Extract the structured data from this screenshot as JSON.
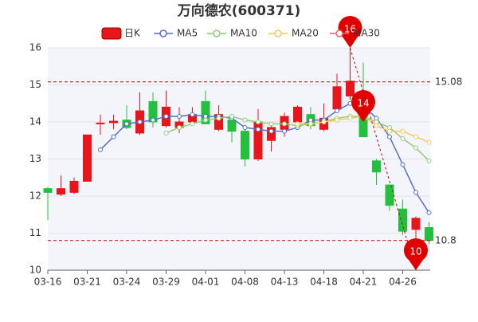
{
  "chart_data": {
    "type": "candlestick",
    "title": "万向德农(600371)",
    "categories": [
      "03-16",
      null,
      null,
      "03-21",
      null,
      null,
      "03-24",
      null,
      null,
      "03-29",
      null,
      null,
      "04-01",
      null,
      null,
      "04-08",
      null,
      null,
      "04-13",
      null,
      null,
      "04-18",
      null,
      null,
      "04-21",
      null,
      null,
      "04-26",
      null,
      null
    ],
    "candle_name": "日K",
    "up_color": "#e8151b",
    "down_color": "#22c03c",
    "open": [
      12.2,
      12.05,
      12.1,
      12.4,
      13.95,
      13.98,
      14.05,
      13.7,
      14.55,
      13.9,
      13.85,
      14.0,
      14.55,
      13.8,
      14.05,
      13.75,
      13.0,
      13.5,
      13.8,
      14.0,
      14.2,
      13.8,
      14.35,
      14.7,
      14.65,
      12.95,
      12.3,
      11.65,
      11.1,
      11.15
    ],
    "close": [
      12.1,
      12.2,
      12.4,
      13.65,
      13.97,
      14.02,
      13.85,
      14.3,
      14.0,
      14.4,
      14.0,
      14.2,
      13.95,
      14.2,
      13.75,
      13.0,
      14.0,
      13.85,
      14.15,
      14.4,
      13.9,
      14.1,
      14.95,
      15.1,
      13.6,
      12.65,
      11.75,
      11.05,
      11.4,
      10.8
    ],
    "high": [
      12.25,
      12.55,
      12.5,
      13.65,
      14.2,
      14.2,
      14.45,
      14.8,
      14.8,
      14.85,
      14.4,
      14.4,
      14.85,
      14.45,
      14.2,
      13.85,
      14.35,
      14.0,
      14.25,
      14.45,
      14.4,
      14.5,
      15.3,
      16.0,
      15.6,
      13.0,
      12.3,
      11.9,
      11.45,
      11.3
    ],
    "low": [
      11.35,
      12.0,
      12.05,
      12.4,
      13.65,
      13.8,
      13.8,
      13.65,
      13.85,
      13.85,
      13.7,
      13.95,
      13.95,
      13.75,
      13.45,
      12.8,
      12.95,
      13.2,
      13.6,
      13.9,
      13.8,
      13.75,
      14.3,
      14.6,
      13.6,
      12.3,
      11.6,
      10.95,
      10.45,
      10.7
    ],
    "series": [
      {
        "name": "MA5",
        "color": "#5470c6",
        "values": [
          null,
          null,
          null,
          null,
          13.25,
          13.6,
          13.95,
          14.0,
          14.05,
          14.15,
          14.15,
          14.2,
          14.15,
          14.15,
          14.1,
          13.85,
          13.8,
          13.75,
          13.75,
          13.85,
          14.05,
          14.05,
          14.3,
          14.5,
          14.45,
          14.1,
          13.6,
          12.85,
          12.1,
          11.55
        ]
      },
      {
        "name": "MA10",
        "color": "#91cc75",
        "values": [
          null,
          null,
          null,
          null,
          null,
          null,
          null,
          null,
          null,
          13.7,
          13.85,
          13.95,
          14.05,
          14.1,
          14.15,
          14.05,
          14.0,
          13.95,
          13.95,
          13.9,
          13.95,
          14.0,
          14.1,
          14.15,
          14.15,
          14.0,
          13.85,
          13.55,
          13.3,
          12.95
        ]
      },
      {
        "name": "MA20",
        "color": "#fac858",
        "values": [
          null,
          null,
          null,
          null,
          null,
          null,
          null,
          null,
          null,
          null,
          null,
          null,
          null,
          null,
          null,
          null,
          null,
          null,
          null,
          13.95,
          13.95,
          14.0,
          14.05,
          14.1,
          14.15,
          13.9,
          13.75,
          13.75,
          13.6,
          13.45
        ]
      },
      {
        "name": "MA30",
        "color": "#ee6666",
        "values": [
          null,
          null,
          null,
          null,
          null,
          null,
          null,
          null,
          null,
          null,
          null,
          null,
          null,
          null,
          null,
          null,
          null,
          null,
          null,
          null,
          null,
          null,
          null,
          null,
          null,
          null,
          null,
          null,
          null,
          null
        ]
      }
    ],
    "ref_lines": [
      15.08,
      10.8
    ],
    "markers": [
      {
        "index": 23,
        "value": 16
      },
      {
        "index": 24,
        "value": 14
      },
      {
        "index": 28,
        "value": 10
      }
    ],
    "ylim": [
      10,
      16
    ],
    "yticks": [
      10,
      11,
      12,
      13,
      14,
      15,
      16
    ],
    "grid": true
  }
}
